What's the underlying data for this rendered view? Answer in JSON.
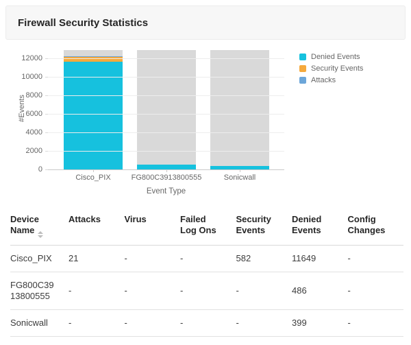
{
  "header": {
    "title": "Firewall Security Statistics"
  },
  "chart_data": {
    "type": "bar",
    "stacked": true,
    "categories": [
      "Cisco_PIX",
      "FG800C3913800555",
      "Sonicwall"
    ],
    "series": [
      {
        "name": "Denied Events",
        "color": "#16C1DE",
        "values": [
          11649,
          486,
          399
        ]
      },
      {
        "name": "Security Events",
        "color": "#F5A93C",
        "values": [
          582,
          0,
          0
        ]
      },
      {
        "name": "Attacks",
        "color": "#6CA6D9",
        "values": [
          21,
          0,
          0
        ]
      }
    ],
    "title": "",
    "xlabel": "Event Type",
    "ylabel": "#Events",
    "ylim": [
      0,
      12890
    ],
    "y_ticks": [
      0,
      2000,
      4000,
      6000,
      8000,
      10000,
      12000
    ],
    "grid": true,
    "legend_position": "right",
    "bar_background_color": "#D9D9D9"
  },
  "table": {
    "columns": [
      "Device Name",
      "Attacks",
      "Virus",
      "Failed Log Ons",
      "Security Events",
      "Denied Events",
      "Config Changes"
    ],
    "sorted_column": "Device Name",
    "rows": [
      [
        "Cisco_PIX",
        "21",
        "-",
        "-",
        "582",
        "11649",
        "-"
      ],
      [
        "FG800C3913800555",
        "-",
        "-",
        "-",
        "-",
        "486",
        "-"
      ],
      [
        "Sonicwall",
        "-",
        "-",
        "-",
        "-",
        "399",
        "-"
      ]
    ]
  }
}
